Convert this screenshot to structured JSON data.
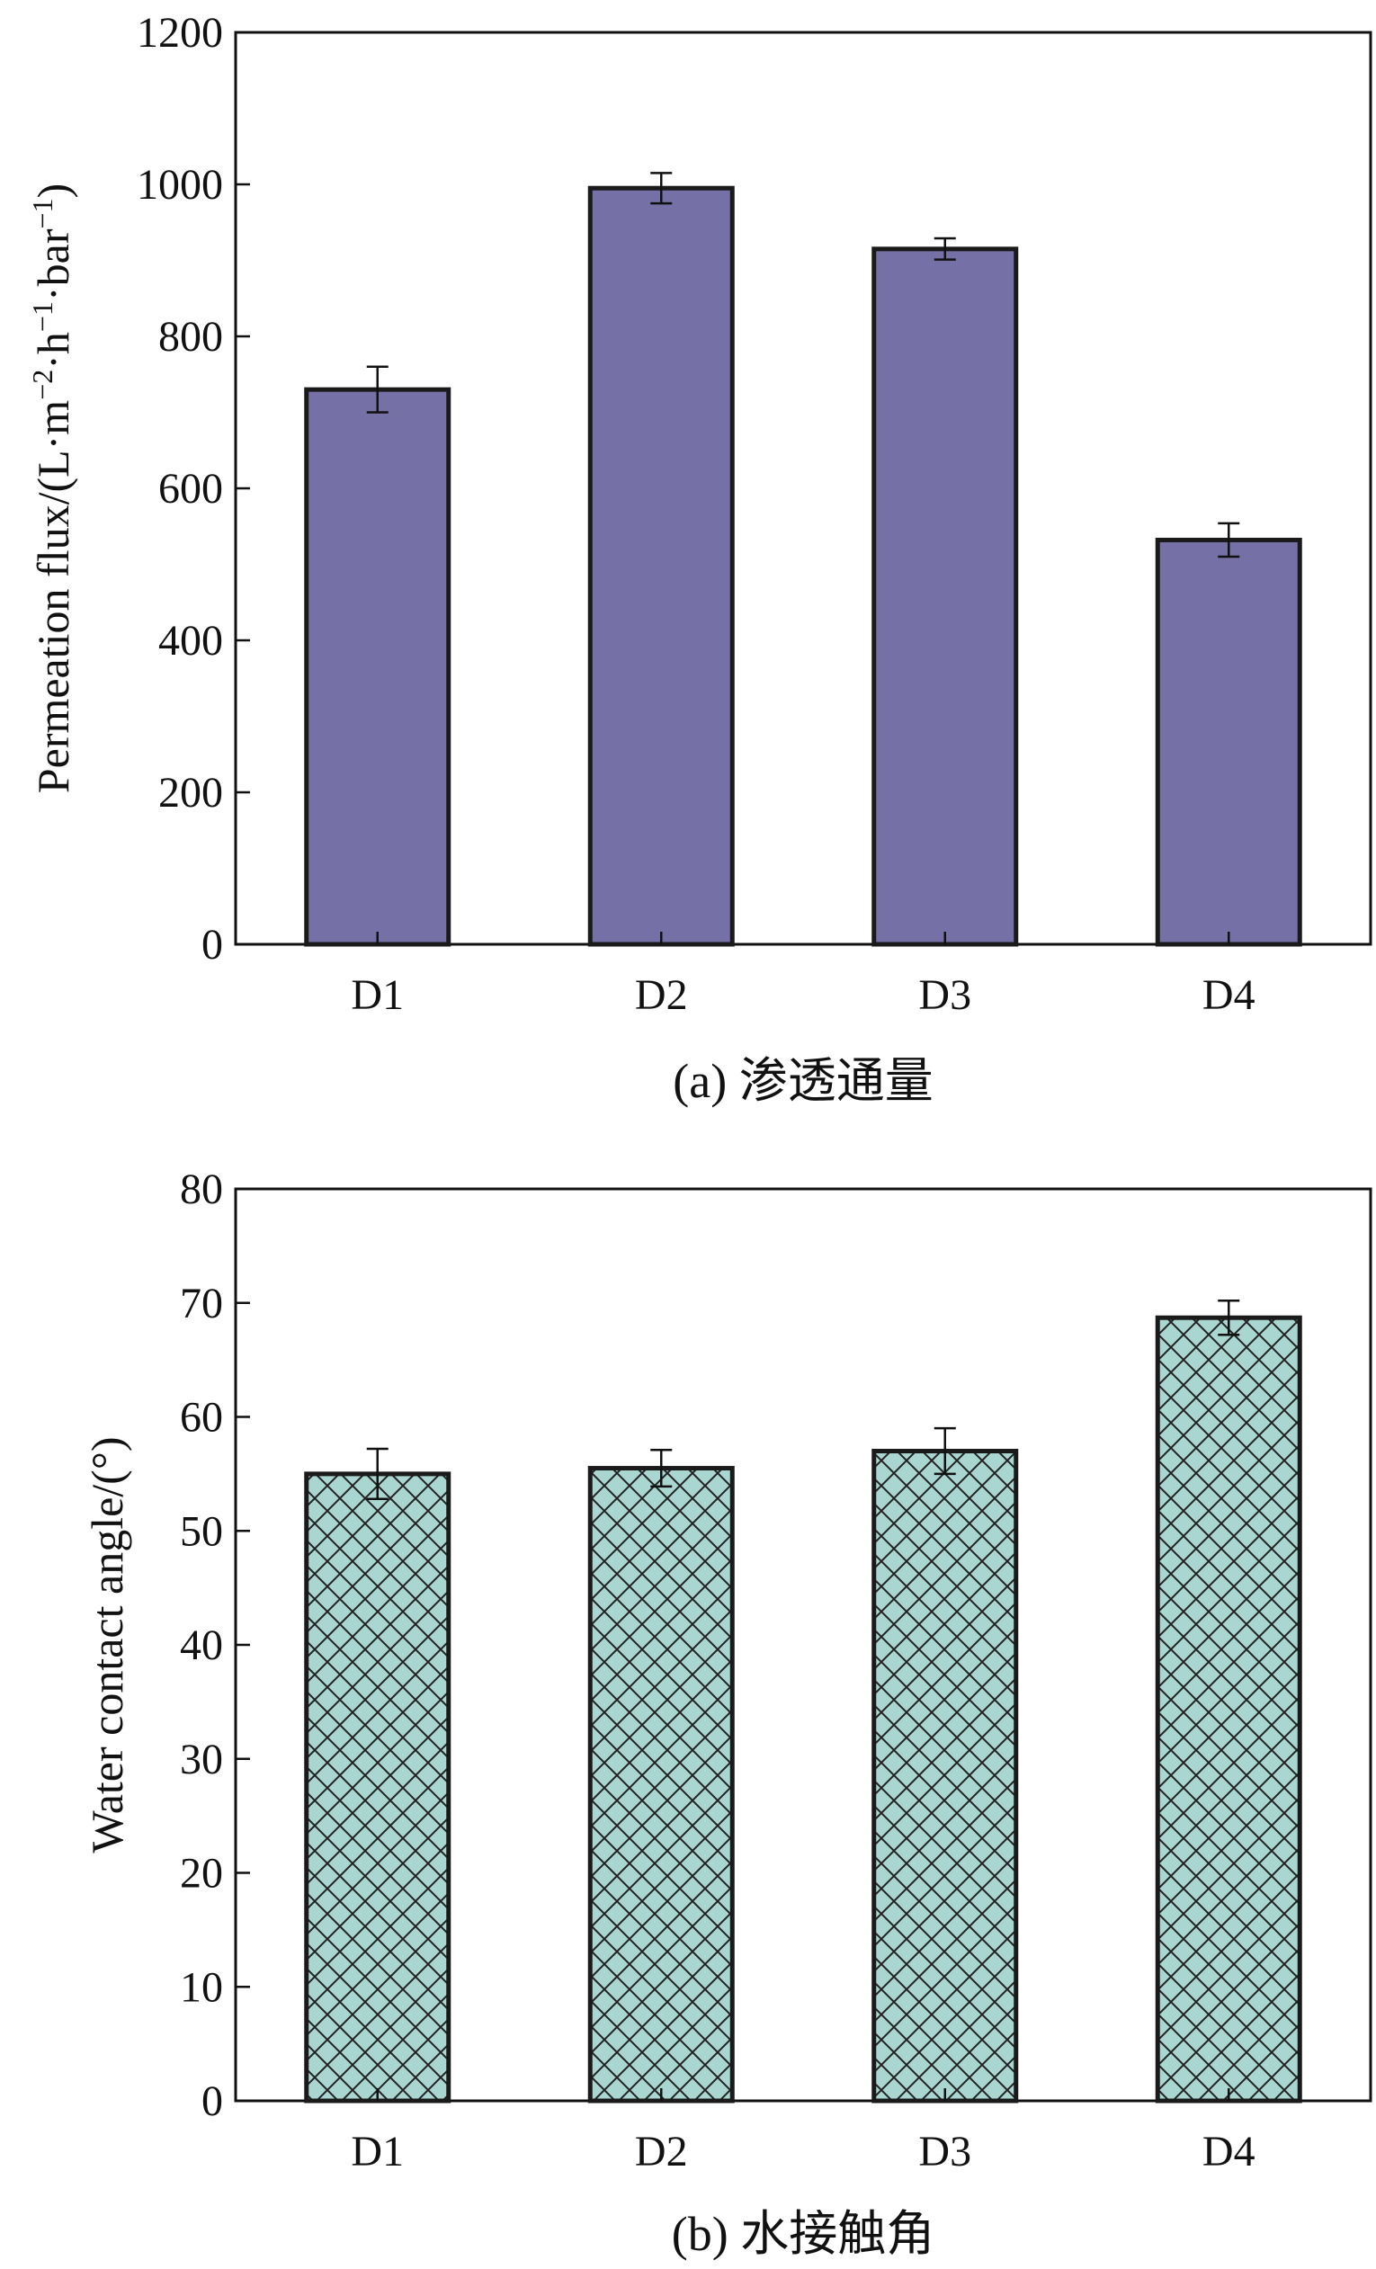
{
  "colors": {
    "bar_a": "#7570a6",
    "bar_b": "#a9d6d1",
    "hatch": "#222222",
    "axis": "#111111"
  },
  "chart_data": [
    {
      "type": "bar",
      "panel": "a",
      "title": "(a) 渗透通量",
      "xlabel": "",
      "ylabel": "Permeation flux/(L·m⁻²·h⁻¹·bar⁻¹)",
      "ylabel_parts": {
        "main": "Permeation flux/(L",
        "dot": "·",
        "m": "m",
        "m_exp": "−2",
        "h": "h",
        "h_exp": "−1",
        "bar": "bar",
        "bar_exp": "−1",
        "close": ")"
      },
      "categories": [
        "D1",
        "D2",
        "D3",
        "D4"
      ],
      "values": [
        730,
        995,
        915,
        532
      ],
      "errors": [
        30,
        20,
        14,
        22
      ],
      "ylim": [
        0,
        1200
      ],
      "yticks": [
        0,
        200,
        400,
        600,
        800,
        1000,
        1200
      ],
      "fill": "solid",
      "grid": false
    },
    {
      "type": "bar",
      "panel": "b",
      "title": "(b) 水接触角",
      "xlabel": "",
      "ylabel": "Water contact angle/(°)",
      "categories": [
        "D1",
        "D2",
        "D3",
        "D4"
      ],
      "values": [
        55,
        55.5,
        57,
        68.7
      ],
      "errors": [
        2.2,
        1.6,
        2.0,
        1.5
      ],
      "ylim": [
        0,
        80
      ],
      "yticks": [
        0,
        10,
        20,
        30,
        40,
        50,
        60,
        70,
        80
      ],
      "fill": "crosshatch",
      "grid": false
    }
  ]
}
